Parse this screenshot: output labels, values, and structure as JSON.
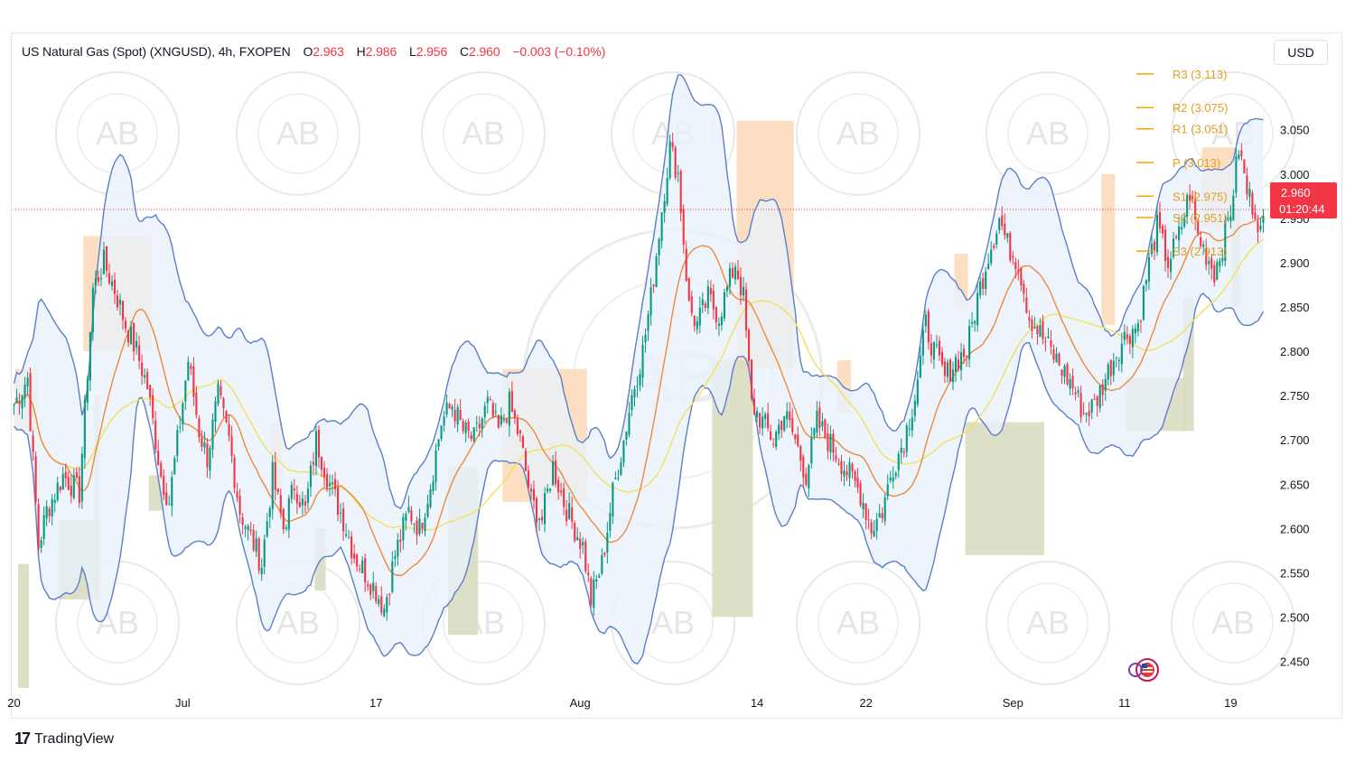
{
  "header": {
    "symbol": "US Natural Gas (Spot) (XNGUSD), 4h, FXOPEN",
    "o_label": "O",
    "o_value": "2.963",
    "h_label": "H",
    "h_value": "2.986",
    "l_label": "L",
    "l_value": "2.956",
    "c_label": "C",
    "c_value": "2.960",
    "change": "−0.003 (−0.10%)"
  },
  "currency_button": "USD",
  "price_tag": {
    "price": "2.960",
    "countdown": "01:20:44"
  },
  "footer": {
    "brand": "TradingView"
  },
  "watermark_text": "AB",
  "colors": {
    "up": "#089981",
    "down": "#f23645",
    "band": "#5b7fc9",
    "band_fill": "#e8f1fb",
    "ma_orange": "#ef8a3a",
    "ma_yellow": "#f2e15c",
    "pivot": "#f2a900",
    "supply": "#fbd8b8",
    "demand": "#d9dcc0"
  },
  "chart_data": {
    "type": "candlestick",
    "ylim": [
      2.42,
      3.12
    ],
    "y_ticks": [
      "3.050",
      "3.000",
      "2.950",
      "2.900",
      "2.850",
      "2.800",
      "2.750",
      "2.700",
      "2.650",
      "2.600",
      "2.550",
      "2.500",
      "2.450"
    ],
    "y_tick_values": [
      3.05,
      3.0,
      2.95,
      2.9,
      2.85,
      2.8,
      2.75,
      2.7,
      2.65,
      2.6,
      2.55,
      2.5,
      2.45
    ],
    "x_ticks": [
      {
        "label": "20",
        "bar": 0
      },
      {
        "label": "Jul",
        "bar": 62
      },
      {
        "label": "17",
        "bar": 133
      },
      {
        "label": "Aug",
        "bar": 208
      },
      {
        "label": "14",
        "bar": 273
      },
      {
        "label": "22",
        "bar": 313
      },
      {
        "label": "Sep",
        "bar": 367
      },
      {
        "label": "11",
        "bar": 408
      },
      {
        "label": "19",
        "bar": 447
      }
    ],
    "current_price": 2.96,
    "pivots": [
      {
        "label": "R3 (3.113)",
        "value": 3.113
      },
      {
        "label": "R2 (3.075)",
        "value": 3.075
      },
      {
        "label": "R1 (3.051)",
        "value": 3.051
      },
      {
        "label": "P (3.013)",
        "value": 3.013
      },
      {
        "label": "S1 (2.975)",
        "value": 2.975
      },
      {
        "label": "S2 (2.951)",
        "value": 2.951
      },
      {
        "label": "S3 (2.913)",
        "value": 2.913
      }
    ],
    "anchors": [
      [
        0,
        2.74
      ],
      [
        5,
        2.77
      ],
      [
        9,
        2.58
      ],
      [
        12,
        2.62
      ],
      [
        18,
        2.66
      ],
      [
        24,
        2.64
      ],
      [
        29,
        2.87
      ],
      [
        33,
        2.9
      ],
      [
        37,
        2.87
      ],
      [
        41,
        2.83
      ],
      [
        45,
        2.8
      ],
      [
        49,
        2.76
      ],
      [
        54,
        2.66
      ],
      [
        57,
        2.63
      ],
      [
        61,
        2.72
      ],
      [
        64,
        2.79
      ],
      [
        68,
        2.71
      ],
      [
        71,
        2.68
      ],
      [
        75,
        2.75
      ],
      [
        79,
        2.7
      ],
      [
        83,
        2.62
      ],
      [
        87,
        2.59
      ],
      [
        91,
        2.56
      ],
      [
        95,
        2.66
      ],
      [
        99,
        2.6
      ],
      [
        103,
        2.65
      ],
      [
        107,
        2.62
      ],
      [
        111,
        2.7
      ],
      [
        116,
        2.65
      ],
      [
        121,
        2.61
      ],
      [
        125,
        2.57
      ],
      [
        129,
        2.55
      ],
      [
        133,
        2.53
      ],
      [
        136,
        2.51
      ],
      [
        140,
        2.57
      ],
      [
        145,
        2.62
      ],
      [
        149,
        2.6
      ],
      [
        153,
        2.65
      ],
      [
        157,
        2.72
      ],
      [
        161,
        2.74
      ],
      [
        165,
        2.71
      ],
      [
        169,
        2.7
      ],
      [
        174,
        2.74
      ],
      [
        178,
        2.71
      ],
      [
        182,
        2.74
      ],
      [
        186,
        2.7
      ],
      [
        190,
        2.63
      ],
      [
        194,
        2.61
      ],
      [
        198,
        2.67
      ],
      [
        202,
        2.63
      ],
      [
        206,
        2.6
      ],
      [
        209,
        2.58
      ],
      [
        212,
        2.52
      ],
      [
        216,
        2.56
      ],
      [
        220,
        2.64
      ],
      [
        224,
        2.7
      ],
      [
        227,
        2.75
      ],
      [
        231,
        2.8
      ],
      [
        234,
        2.86
      ],
      [
        238,
        2.96
      ],
      [
        241,
        3.03
      ],
      [
        244,
        3.0
      ],
      [
        248,
        2.85
      ],
      [
        251,
        2.83
      ],
      [
        255,
        2.86
      ],
      [
        259,
        2.84
      ],
      [
        262,
        2.87
      ],
      [
        265,
        2.9
      ],
      [
        268,
        2.86
      ],
      [
        271,
        2.74
      ],
      [
        275,
        2.72
      ],
      [
        279,
        2.7
      ],
      [
        283,
        2.73
      ],
      [
        287,
        2.7
      ],
      [
        291,
        2.66
      ],
      [
        295,
        2.72
      ],
      [
        299,
        2.7
      ],
      [
        303,
        2.68
      ],
      [
        307,
        2.66
      ],
      [
        311,
        2.64
      ],
      [
        315,
        2.6
      ],
      [
        319,
        2.62
      ],
      [
        323,
        2.67
      ],
      [
        327,
        2.7
      ],
      [
        331,
        2.75
      ],
      [
        335,
        2.83
      ],
      [
        338,
        2.8
      ],
      [
        342,
        2.77
      ],
      [
        346,
        2.79
      ],
      [
        350,
        2.8
      ],
      [
        354,
        2.86
      ],
      [
        358,
        2.91
      ],
      [
        362,
        2.95
      ],
      [
        365,
        2.92
      ],
      [
        369,
        2.9
      ],
      [
        373,
        2.84
      ],
      [
        377,
        2.82
      ],
      [
        381,
        2.8
      ],
      [
        385,
        2.78
      ],
      [
        389,
        2.76
      ],
      [
        393,
        2.73
      ],
      [
        397,
        2.74
      ],
      [
        401,
        2.77
      ],
      [
        405,
        2.8
      ],
      [
        409,
        2.82
      ],
      [
        413,
        2.83
      ],
      [
        417,
        2.9
      ],
      [
        420,
        2.94
      ],
      [
        424,
        2.9
      ],
      [
        428,
        2.93
      ],
      [
        432,
        2.98
      ],
      [
        435,
        2.93
      ],
      [
        438,
        2.91
      ],
      [
        441,
        2.89
      ],
      [
        444,
        2.92
      ],
      [
        447,
        2.96
      ],
      [
        450,
        3.03
      ],
      [
        453,
        2.98
      ],
      [
        456,
        2.96
      ]
    ],
    "bands": {
      "window": 20,
      "mult": 2
    },
    "ma_fast": 20,
    "ma_slow": 50,
    "zones": [
      {
        "kind": "supply",
        "from": 1,
        "to": 8,
        "low": 2.71,
        "high": 2.78
      },
      {
        "kind": "supply",
        "from": 26,
        "to": 50,
        "low": 2.8,
        "high": 2.93
      },
      {
        "kind": "supply",
        "from": 95,
        "to": 98,
        "low": 2.64,
        "high": 2.72
      },
      {
        "kind": "supply",
        "from": 180,
        "to": 210,
        "low": 2.63,
        "high": 2.78
      },
      {
        "kind": "supply",
        "from": 266,
        "to": 286,
        "low": 2.78,
        "high": 3.06
      },
      {
        "kind": "supply",
        "from": 303,
        "to": 307,
        "low": 2.73,
        "high": 2.79
      },
      {
        "kind": "supply",
        "from": 346,
        "to": 350,
        "low": 2.85,
        "high": 2.91
      },
      {
        "kind": "supply",
        "from": 400,
        "to": 404,
        "low": 2.83,
        "high": 3.0
      },
      {
        "kind": "supply",
        "from": 437,
        "to": 448,
        "low": 2.94,
        "high": 3.03
      },
      {
        "kind": "demand",
        "from": 2,
        "to": 5,
        "low": 2.42,
        "high": 2.56
      },
      {
        "kind": "demand",
        "from": 17,
        "to": 30,
        "low": 2.52,
        "high": 2.61
      },
      {
        "kind": "demand",
        "from": 30,
        "to": 31,
        "low": 2.52,
        "high": 2.75
      },
      {
        "kind": "demand",
        "from": 50,
        "to": 56,
        "low": 2.62,
        "high": 2.66
      },
      {
        "kind": "demand",
        "from": 111,
        "to": 114,
        "low": 2.53,
        "high": 2.6
      },
      {
        "kind": "demand",
        "from": 160,
        "to": 170,
        "low": 2.48,
        "high": 2.67
      },
      {
        "kind": "demand",
        "from": 257,
        "to": 271,
        "low": 2.5,
        "high": 2.79
      },
      {
        "kind": "demand",
        "from": 350,
        "to": 378,
        "low": 2.57,
        "high": 2.72
      },
      {
        "kind": "demand",
        "from": 409,
        "to": 430,
        "low": 2.71,
        "high": 2.77
      },
      {
        "kind": "demand",
        "from": 430,
        "to": 433,
        "low": 2.71,
        "high": 2.86
      },
      {
        "kind": "demand",
        "from": 448,
        "to": 450,
        "low": 2.85,
        "high": 2.96
      }
    ]
  }
}
